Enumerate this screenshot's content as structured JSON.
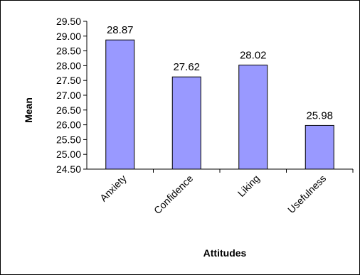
{
  "chart_data": {
    "type": "bar",
    "title": "",
    "xlabel": "Attitudes",
    "ylabel": "Mean",
    "categories": [
      "Anxiety",
      "Confidence",
      "Liking",
      "Usefulness"
    ],
    "values": [
      28.87,
      27.62,
      28.02,
      25.98
    ],
    "data_labels": [
      "28.87",
      "27.62",
      "28.02",
      "25.98"
    ],
    "ylim": [
      24.5,
      29.5
    ],
    "yticks": [
      "24.50",
      "25.00",
      "25.50",
      "26.00",
      "26.50",
      "27.00",
      "27.50",
      "28.00",
      "28.50",
      "29.00",
      "29.50"
    ],
    "grid": false,
    "legend": "none",
    "colors": {
      "bar_fill": "#9999ff",
      "bar_stroke": "#000000",
      "axis": "#000000"
    }
  }
}
